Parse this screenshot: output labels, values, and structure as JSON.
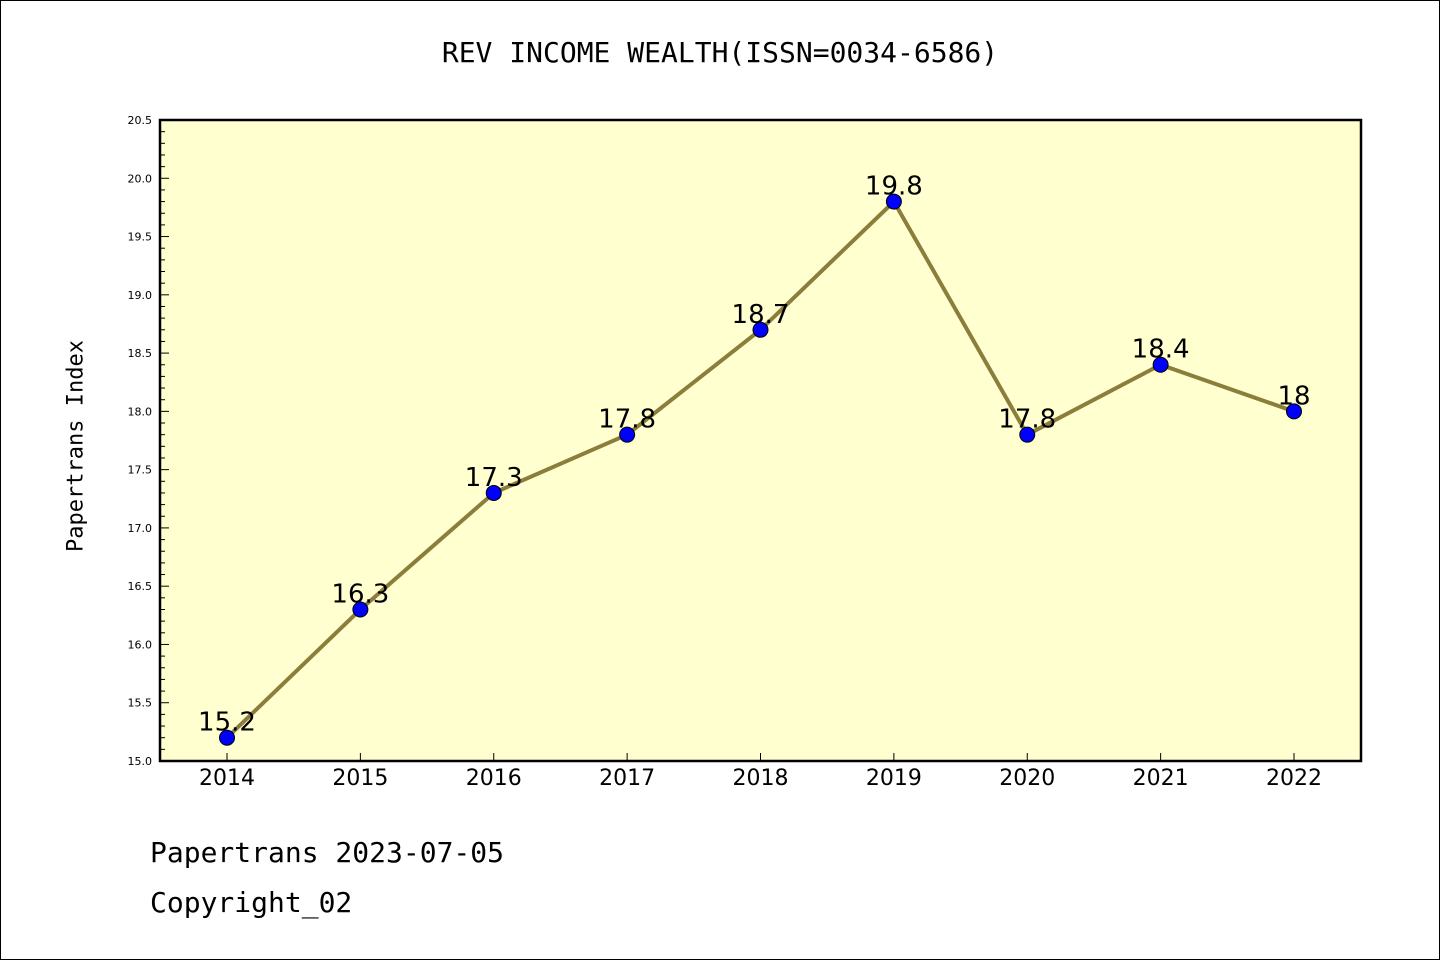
{
  "chart_data": {
    "type": "line",
    "title": "REV INCOME WEALTH(ISSN=0034-6586)",
    "xlabel": "",
    "ylabel": "Papertrans Index",
    "categories": [
      "2014",
      "2015",
      "2016",
      "2017",
      "2018",
      "2019",
      "2020",
      "2021",
      "2022"
    ],
    "series": [
      {
        "values": [
          15.2,
          16.3,
          17.3,
          17.8,
          18.7,
          19.8,
          17.8,
          18.4,
          18
        ],
        "labels": [
          "15.2",
          "16.3",
          "17.3",
          "17.8",
          "18.7",
          "19.8",
          "17.8",
          "18.4",
          "18"
        ]
      }
    ],
    "ylim": [
      15.0,
      20.5
    ],
    "yticks": [
      "15.0",
      "15.5",
      "16.0",
      "16.5",
      "17.0",
      "17.5",
      "18.0",
      "18.5",
      "19.0",
      "19.5",
      "20.0",
      "20.5"
    ],
    "grid": false,
    "colors": {
      "plot_background": "#ffffd0",
      "line": "#8b7d3a",
      "marker": "#0000ff"
    }
  },
  "footer": {
    "line1": "Papertrans 2023-07-05",
    "line2": "Copyright_02"
  }
}
